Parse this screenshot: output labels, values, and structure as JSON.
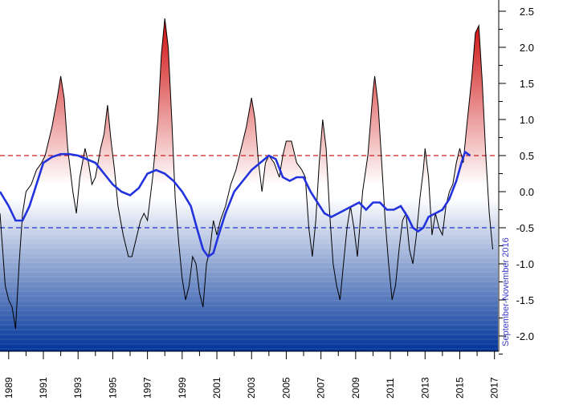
{
  "chart_data": {
    "type": "area",
    "title": "",
    "xlabel": "",
    "ylabel": "",
    "xlim": [
      1988.5,
      2017.2
    ],
    "ylim": [
      -2.2,
      2.6
    ],
    "x_ticks": [
      1989,
      1991,
      1993,
      1995,
      1997,
      1999,
      2001,
      2003,
      2005,
      2007,
      2009,
      2011,
      2013,
      2015,
      2017
    ],
    "y_ticks": [
      2.5,
      2.0,
      1.5,
      1.0,
      0.5,
      0.0,
      -0.5,
      -1.0,
      -1.5,
      -2.0
    ],
    "y_tick_labels": [
      "2.5",
      "2.0",
      "1.5",
      "1.0",
      "0.5",
      "0.0",
      "-0.5",
      "-1.0",
      "-1.5",
      "-2.0"
    ],
    "thresholds": [
      {
        "value": 0.5,
        "color": "#cc2222",
        "style": "dashed"
      },
      {
        "value": -0.5,
        "color": "#2233cc",
        "style": "dashed"
      }
    ],
    "annotation": "September-November 2016",
    "colors": {
      "warm": "#cc0000",
      "cool": "#003399",
      "smooth": "#2233dd",
      "line": "#000000"
    },
    "series": [
      {
        "values": [
          [
            1988.5,
            -0.3
          ],
          [
            1988.8,
            -1.3
          ],
          [
            1989.0,
            -1.5
          ],
          [
            1989.2,
            -1.6
          ],
          [
            1989.4,
            -1.9
          ],
          [
            1989.6,
            -1.0
          ],
          [
            1989.8,
            -0.3
          ],
          [
            1990.0,
            0.0
          ],
          [
            1990.3,
            0.1
          ],
          [
            1990.6,
            0.3
          ],
          [
            1990.9,
            0.4
          ],
          [
            1991.1,
            0.5
          ],
          [
            1991.3,
            0.7
          ],
          [
            1991.5,
            0.9
          ],
          [
            1991.8,
            1.3
          ],
          [
            1992.0,
            1.6
          ],
          [
            1992.2,
            1.3
          ],
          [
            1992.4,
            0.6
          ],
          [
            1992.7,
            0.0
          ],
          [
            1992.9,
            -0.3
          ],
          [
            1993.1,
            0.2
          ],
          [
            1993.4,
            0.6
          ],
          [
            1993.6,
            0.4
          ],
          [
            1993.8,
            0.1
          ],
          [
            1994.0,
            0.2
          ],
          [
            1994.3,
            0.6
          ],
          [
            1994.5,
            0.8
          ],
          [
            1994.7,
            1.2
          ],
          [
            1994.9,
            0.7
          ],
          [
            1995.1,
            0.3
          ],
          [
            1995.3,
            -0.2
          ],
          [
            1995.6,
            -0.6
          ],
          [
            1995.9,
            -0.9
          ],
          [
            1996.1,
            -0.9
          ],
          [
            1996.4,
            -0.6
          ],
          [
            1996.6,
            -0.4
          ],
          [
            1996.8,
            -0.3
          ],
          [
            1997.0,
            -0.4
          ],
          [
            1997.3,
            0.2
          ],
          [
            1997.6,
            1.0
          ],
          [
            1997.8,
            1.9
          ],
          [
            1998.0,
            2.4
          ],
          [
            1998.2,
            2.0
          ],
          [
            1998.4,
            1.0
          ],
          [
            1998.6,
            -0.1
          ],
          [
            1998.8,
            -0.7
          ],
          [
            1999.0,
            -1.2
          ],
          [
            1999.2,
            -1.5
          ],
          [
            1999.4,
            -1.3
          ],
          [
            1999.6,
            -0.9
          ],
          [
            1999.8,
            -1.0
          ],
          [
            2000.0,
            -1.4
          ],
          [
            2000.2,
            -1.6
          ],
          [
            2000.4,
            -1.0
          ],
          [
            2000.6,
            -0.8
          ],
          [
            2000.8,
            -0.4
          ],
          [
            2001.0,
            -0.6
          ],
          [
            2001.2,
            -0.4
          ],
          [
            2001.5,
            -0.2
          ],
          [
            2001.8,
            0.1
          ],
          [
            2002.1,
            0.3
          ],
          [
            2002.4,
            0.6
          ],
          [
            2002.7,
            0.9
          ],
          [
            2003.0,
            1.3
          ],
          [
            2003.2,
            1.0
          ],
          [
            2003.4,
            0.4
          ],
          [
            2003.6,
            0.0
          ],
          [
            2003.8,
            0.4
          ],
          [
            2004.0,
            0.5
          ],
          [
            2004.3,
            0.4
          ],
          [
            2004.6,
            0.2
          ],
          [
            2004.8,
            0.5
          ],
          [
            2005.0,
            0.7
          ],
          [
            2005.3,
            0.7
          ],
          [
            2005.6,
            0.4
          ],
          [
            2005.9,
            0.3
          ],
          [
            2006.1,
            0.2
          ],
          [
            2006.3,
            -0.5
          ],
          [
            2006.5,
            -0.9
          ],
          [
            2006.7,
            -0.4
          ],
          [
            2006.9,
            0.4
          ],
          [
            2007.1,
            1.0
          ],
          [
            2007.3,
            0.6
          ],
          [
            2007.5,
            -0.3
          ],
          [
            2007.7,
            -1.0
          ],
          [
            2007.9,
            -1.3
          ],
          [
            2008.1,
            -1.5
          ],
          [
            2008.3,
            -1.0
          ],
          [
            2008.5,
            -0.5
          ],
          [
            2008.7,
            -0.2
          ],
          [
            2008.9,
            -0.5
          ],
          [
            2009.1,
            -0.9
          ],
          [
            2009.4,
            0.0
          ],
          [
            2009.7,
            0.5
          ],
          [
            2010.0,
            1.4
          ],
          [
            2010.1,
            1.6
          ],
          [
            2010.3,
            1.2
          ],
          [
            2010.5,
            0.4
          ],
          [
            2010.7,
            -0.4
          ],
          [
            2010.9,
            -1.0
          ],
          [
            2011.1,
            -1.5
          ],
          [
            2011.3,
            -1.3
          ],
          [
            2011.5,
            -0.8
          ],
          [
            2011.7,
            -0.4
          ],
          [
            2011.9,
            -0.3
          ],
          [
            2012.1,
            -0.8
          ],
          [
            2012.3,
            -1.0
          ],
          [
            2012.5,
            -0.6
          ],
          [
            2012.7,
            -0.1
          ],
          [
            2012.9,
            0.3
          ],
          [
            2013.0,
            0.6
          ],
          [
            2013.2,
            0.2
          ],
          [
            2013.4,
            -0.6
          ],
          [
            2013.6,
            -0.3
          ],
          [
            2013.8,
            -0.5
          ],
          [
            2014.0,
            -0.6
          ],
          [
            2014.2,
            -0.2
          ],
          [
            2014.4,
            0.0
          ],
          [
            2014.6,
            0.1
          ],
          [
            2014.8,
            0.4
          ],
          [
            2015.0,
            0.6
          ],
          [
            2015.2,
            0.4
          ],
          [
            2015.4,
            0.9
          ],
          [
            2015.7,
            1.6
          ],
          [
            2015.9,
            2.2
          ],
          [
            2016.1,
            2.3
          ],
          [
            2016.3,
            1.5
          ],
          [
            2016.5,
            0.5
          ],
          [
            2016.7,
            -0.3
          ],
          [
            2016.9,
            -0.8
          ]
        ]
      },
      {
        "values": [
          [
            1988.5,
            0.0
          ],
          [
            1989.0,
            -0.2
          ],
          [
            1989.4,
            -0.4
          ],
          [
            1989.8,
            -0.4
          ],
          [
            1990.2,
            -0.2
          ],
          [
            1990.6,
            0.1
          ],
          [
            1991.0,
            0.4
          ],
          [
            1991.5,
            0.48
          ],
          [
            1992.0,
            0.52
          ],
          [
            1992.5,
            0.52
          ],
          [
            1993.0,
            0.5
          ],
          [
            1993.5,
            0.45
          ],
          [
            1994.0,
            0.4
          ],
          [
            1994.5,
            0.25
          ],
          [
            1995.0,
            0.1
          ],
          [
            1995.5,
            0.0
          ],
          [
            1996.0,
            -0.05
          ],
          [
            1996.5,
            0.05
          ],
          [
            1997.0,
            0.25
          ],
          [
            1997.5,
            0.3
          ],
          [
            1998.0,
            0.25
          ],
          [
            1998.5,
            0.15
          ],
          [
            1999.0,
            0.0
          ],
          [
            1999.5,
            -0.2
          ],
          [
            1999.9,
            -0.55
          ],
          [
            2000.2,
            -0.8
          ],
          [
            2000.5,
            -0.9
          ],
          [
            2000.8,
            -0.85
          ],
          [
            2001.1,
            -0.6
          ],
          [
            2001.5,
            -0.3
          ],
          [
            2002.0,
            0.0
          ],
          [
            2002.5,
            0.15
          ],
          [
            2003.0,
            0.3
          ],
          [
            2003.5,
            0.4
          ],
          [
            2004.0,
            0.5
          ],
          [
            2004.4,
            0.45
          ],
          [
            2004.8,
            0.2
          ],
          [
            2005.2,
            0.15
          ],
          [
            2005.6,
            0.2
          ],
          [
            2006.0,
            0.2
          ],
          [
            2006.4,
            0.0
          ],
          [
            2006.8,
            -0.15
          ],
          [
            2007.2,
            -0.3
          ],
          [
            2007.6,
            -0.35
          ],
          [
            2008.0,
            -0.3
          ],
          [
            2008.4,
            -0.25
          ],
          [
            2008.8,
            -0.2
          ],
          [
            2009.2,
            -0.15
          ],
          [
            2009.6,
            -0.25
          ],
          [
            2010.0,
            -0.15
          ],
          [
            2010.4,
            -0.15
          ],
          [
            2010.8,
            -0.25
          ],
          [
            2011.2,
            -0.25
          ],
          [
            2011.6,
            -0.2
          ],
          [
            2012.0,
            -0.35
          ],
          [
            2012.3,
            -0.5
          ],
          [
            2012.6,
            -0.55
          ],
          [
            2012.9,
            -0.5
          ],
          [
            2013.2,
            -0.35
          ],
          [
            2013.6,
            -0.3
          ],
          [
            2014.0,
            -0.25
          ],
          [
            2014.4,
            -0.1
          ],
          [
            2014.8,
            0.15
          ],
          [
            2015.1,
            0.4
          ],
          [
            2015.3,
            0.55
          ],
          [
            2015.6,
            0.5
          ]
        ]
      }
    ]
  }
}
